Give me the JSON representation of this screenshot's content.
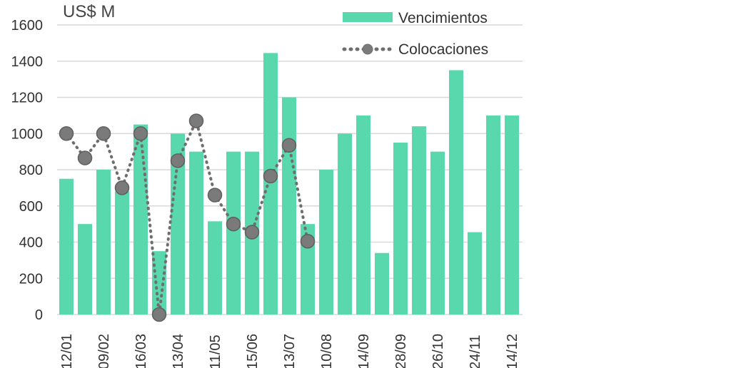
{
  "chart_data": {
    "type": "bar",
    "unit_label": "US$ M",
    "categories": [
      "12/01",
      "",
      "09/02",
      "",
      "16/03",
      "",
      "13/04",
      "",
      "11/05",
      "",
      "15/06",
      "",
      "13/07",
      "",
      "10/08",
      "",
      "14/09",
      "",
      "28/09",
      "",
      "26/10",
      "",
      "24/11",
      "",
      "14/12"
    ],
    "series": [
      {
        "name": "Vencimientos",
        "type": "bar",
        "color": "#5ad8ad",
        "values": [
          750,
          500,
          800,
          680,
          1050,
          350,
          1000,
          900,
          515,
          900,
          900,
          1445,
          1200,
          500,
          800,
          1000,
          1100,
          340,
          950,
          1040,
          900,
          1350,
          455,
          1100,
          1100
        ]
      },
      {
        "name": "Colocaciones",
        "type": "line",
        "style": "dotted",
        "marker": "circle",
        "color": "#6e6e6e",
        "values": [
          1000,
          865,
          1000,
          700,
          1000,
          0,
          850,
          1070,
          660,
          500,
          455,
          765,
          935,
          405,
          null,
          null,
          null,
          null,
          null,
          null,
          null,
          null,
          null,
          null,
          null
        ]
      }
    ],
    "ylim": [
      0,
      1600
    ],
    "yticks": [
      "0",
      "200",
      "400",
      "600",
      "800",
      "1000",
      "1200",
      "1400",
      "1600"
    ],
    "grid": true,
    "legend_position": "top-right"
  }
}
